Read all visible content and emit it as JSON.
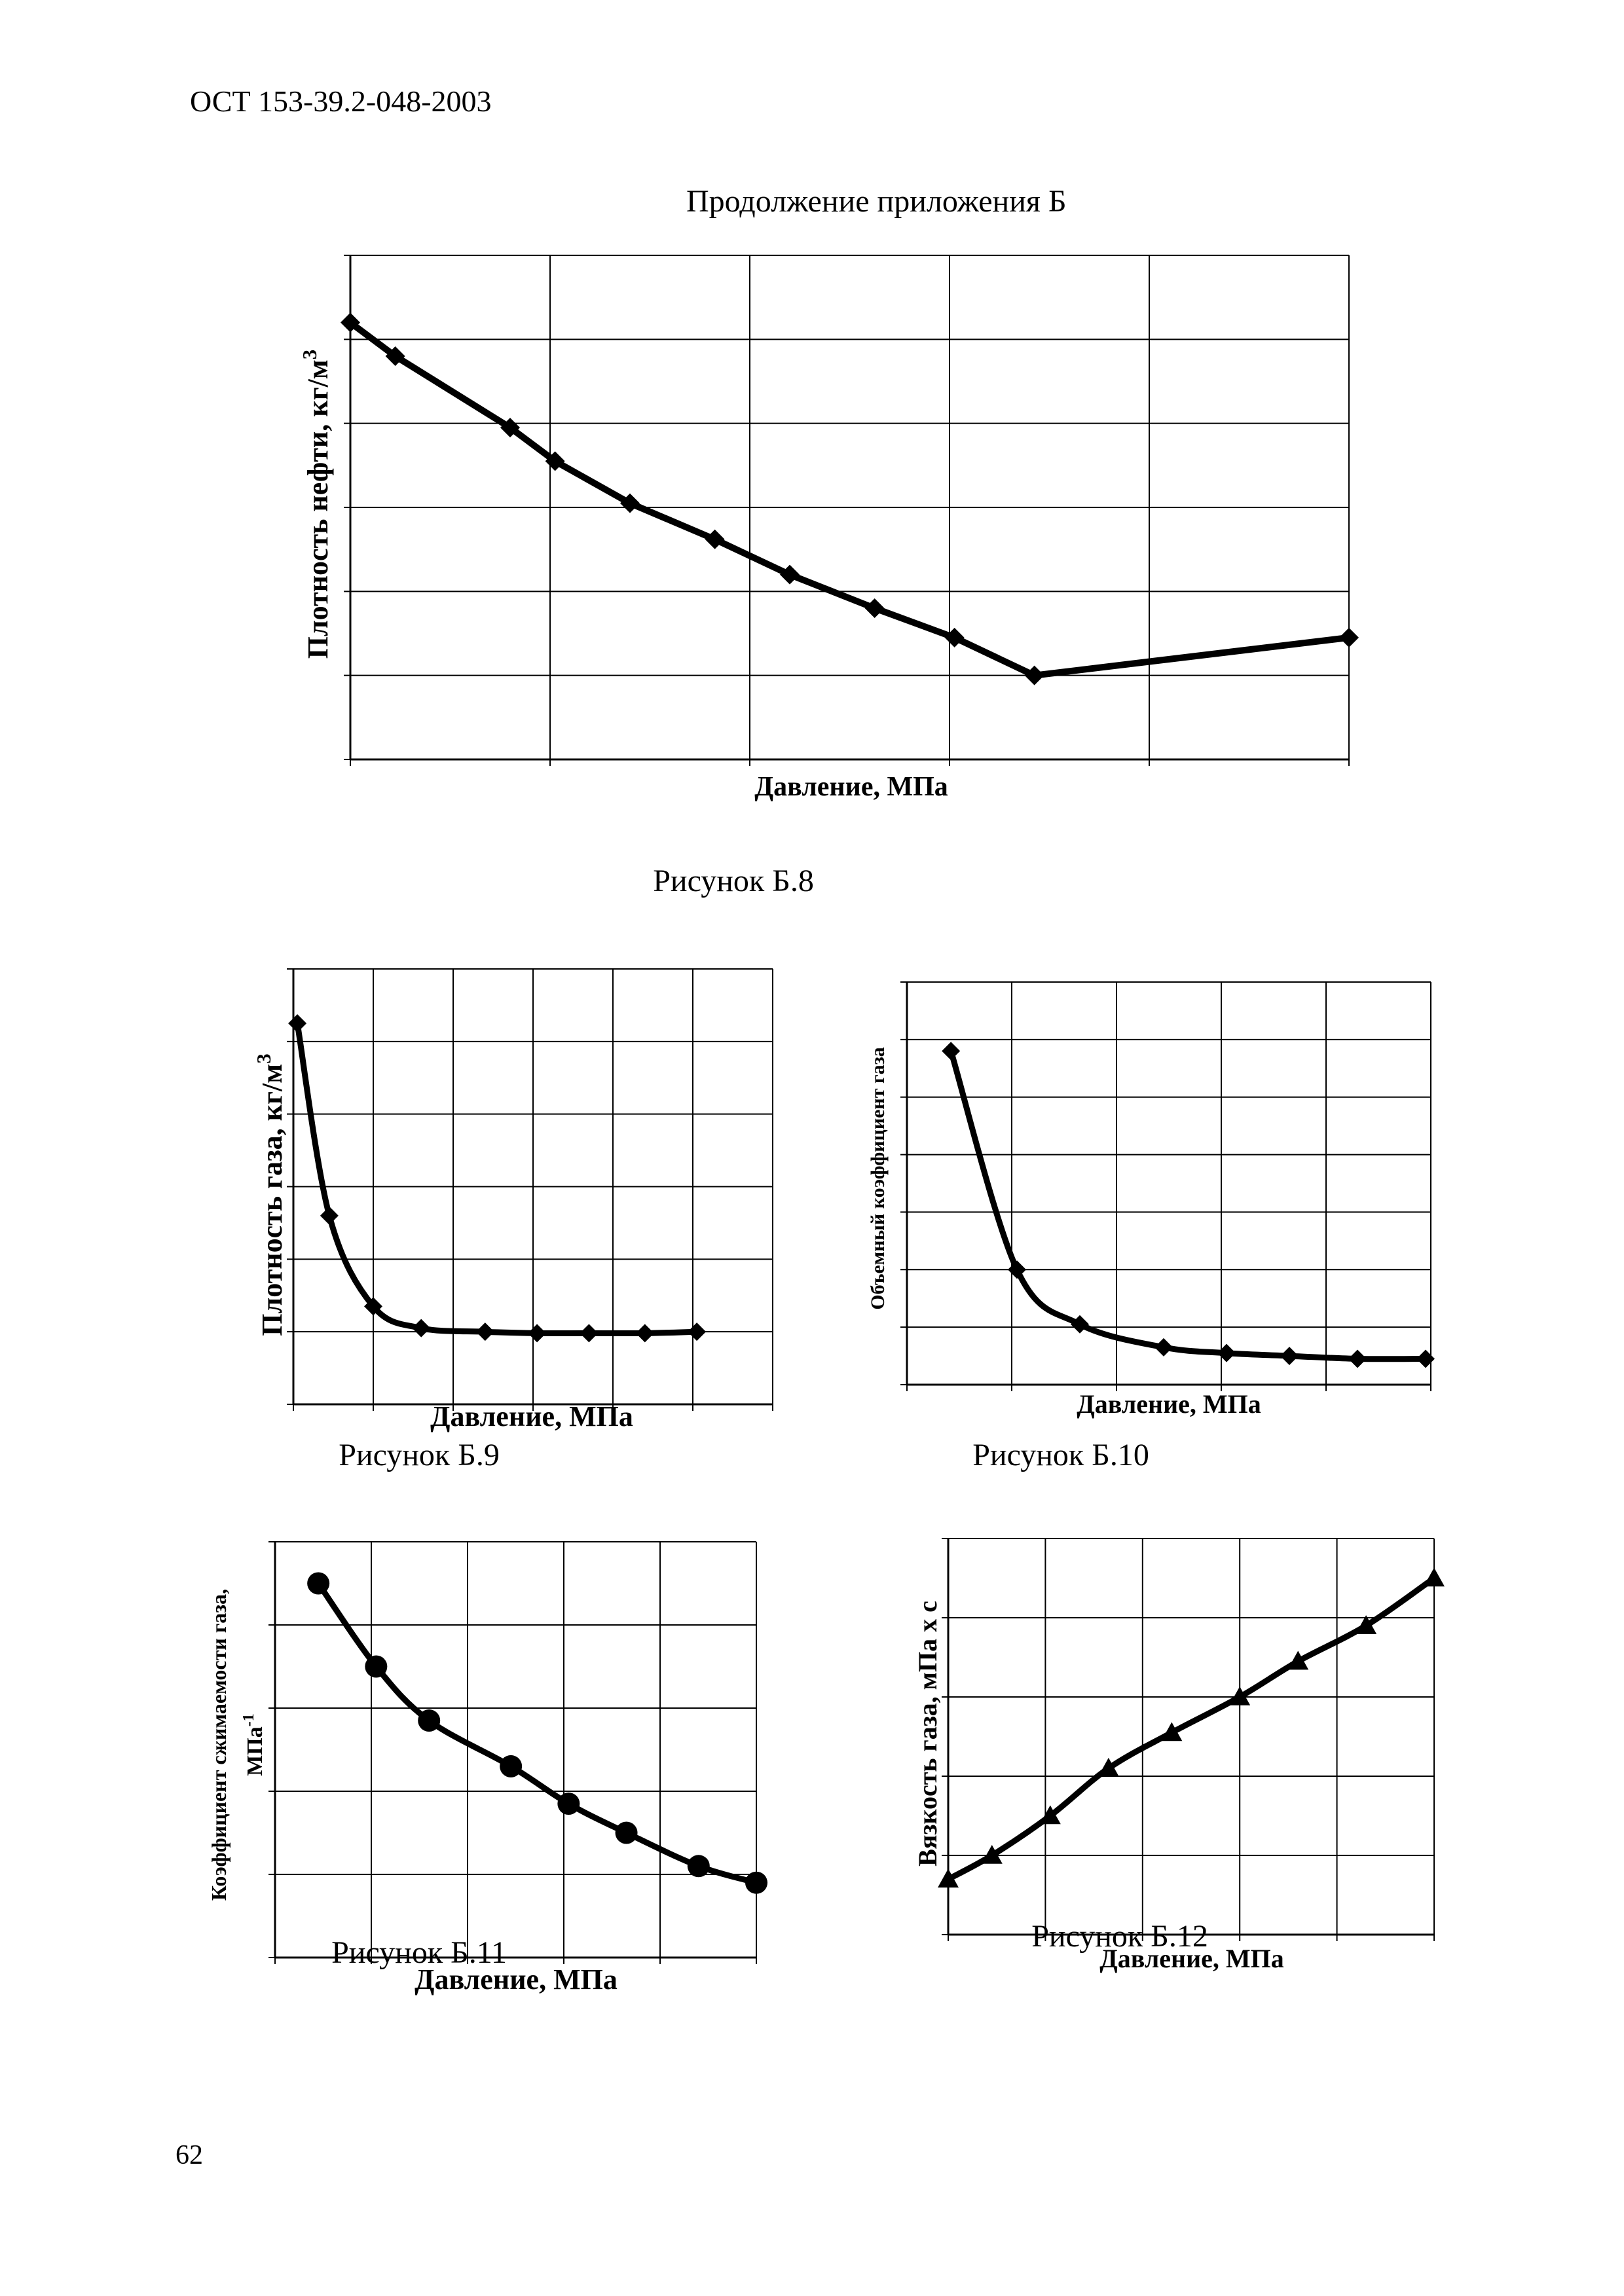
{
  "document": {
    "code": "ОСТ 153-39.2-048-2003",
    "appendix_title": "Продолжение приложения Б",
    "page_number": "62"
  },
  "chart_data": [
    {
      "id": "b8",
      "type": "line",
      "marker": "diamond",
      "caption": "Рисунок Б.8",
      "xlabel": "Давление, МПа",
      "ylabel": "Плотность нефти, кг/м",
      "ylabel_sup": "3",
      "xlim": [
        0,
        10
      ],
      "ylim": [
        0,
        6
      ],
      "x": [
        0,
        0.45,
        1.6,
        2.05,
        2.8,
        3.65,
        4.4,
        5.25,
        6.05,
        6.85,
        10
      ],
      "y": [
        5.2,
        4.8,
        3.95,
        3.55,
        3.05,
        2.62,
        2.2,
        1.8,
        1.45,
        1.0,
        1.45
      ]
    },
    {
      "id": "b9",
      "type": "line",
      "marker": "diamond",
      "caption": "Рисунок Б.9",
      "xlabel": "Давление, МПа",
      "ylabel": "Плотность газа, кг/м",
      "ylabel_sup": "3",
      "xlim": [
        0,
        6
      ],
      "ylim": [
        0,
        6
      ],
      "x": [
        0.05,
        0.45,
        1.0,
        1.6,
        2.4,
        3.05,
        3.7,
        4.4,
        5.05
      ],
      "y": [
        5.25,
        2.6,
        1.35,
        1.05,
        1.0,
        0.98,
        0.98,
        0.98,
        1.0
      ]
    },
    {
      "id": "b10",
      "type": "line",
      "marker": "diamond",
      "caption": "Рисунок Б.10",
      "xlabel": "Давление, МПа",
      "ylabel": "Объемный коэффициент газа",
      "xlim": [
        0,
        5
      ],
      "ylim": [
        0,
        7
      ],
      "x": [
        0.42,
        1.05,
        1.65,
        2.45,
        3.05,
        3.65,
        4.3,
        4.95
      ],
      "y": [
        5.8,
        2.0,
        1.05,
        0.65,
        0.55,
        0.5,
        0.45,
        0.45
      ]
    },
    {
      "id": "b11",
      "type": "line",
      "marker": "circle",
      "caption": "Рисунок Б.11",
      "xlabel": "Давление, МПа",
      "ylabel": "Коэффициент сжимаемости газа,",
      "ylabel2": "МПа",
      "ylabel2_sup": "-1",
      "xlim": [
        0,
        5
      ],
      "ylim": [
        0,
        5
      ],
      "x": [
        0.45,
        1.05,
        1.6,
        2.45,
        3.05,
        3.65,
        4.4,
        5.0
      ],
      "y": [
        4.5,
        3.5,
        2.85,
        2.3,
        1.85,
        1.5,
        1.1,
        0.9
      ]
    },
    {
      "id": "b12",
      "type": "line",
      "marker": "triangle",
      "caption": "Рисунок Б.12",
      "xlabel": "Давление, МПа",
      "ylabel": "Вязкость газа, мПа х с",
      "xlim": [
        0,
        5
      ],
      "ylim": [
        0,
        5
      ],
      "x": [
        0,
        0.45,
        1.05,
        1.65,
        2.3,
        3.0,
        3.6,
        4.3,
        5.0
      ],
      "y": [
        0.7,
        1.0,
        1.5,
        2.1,
        2.55,
        3.0,
        3.45,
        3.9,
        4.5
      ]
    }
  ]
}
